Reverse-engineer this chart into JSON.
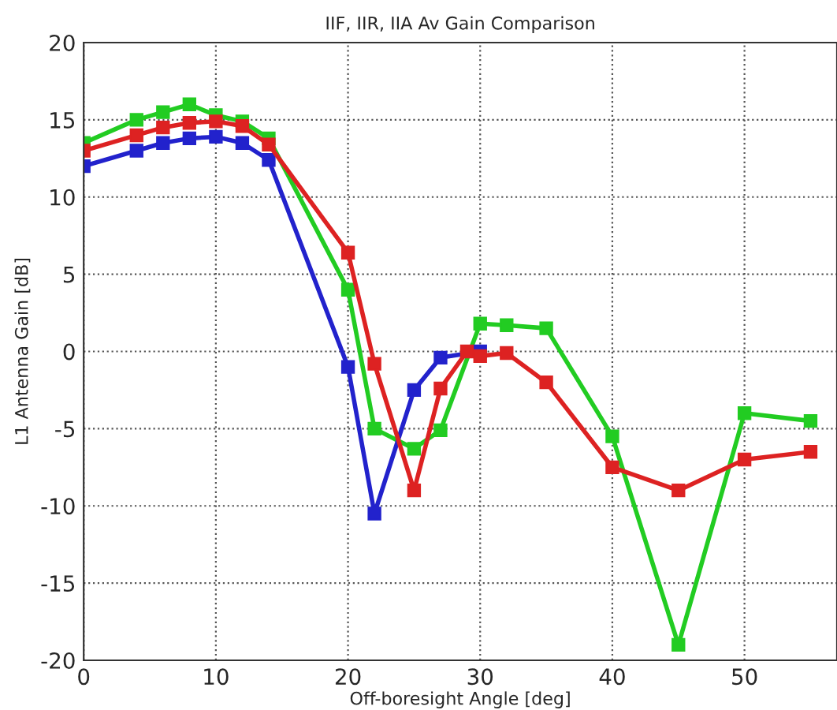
{
  "chart_data": {
    "type": "line",
    "title": "IIF, IIR, IIA Av Gain Comparison",
    "xlabel": "Off-boresight Angle [deg]",
    "ylabel": "L1 Antenna Gain [dB]",
    "xlim": [
      0,
      57
    ],
    "xticks": [
      0,
      10,
      20,
      30,
      40,
      50
    ],
    "ylim": [
      -20,
      20
    ],
    "yticks": [
      -20,
      -15,
      -10,
      -5,
      0,
      5,
      10,
      15,
      20
    ],
    "grid": true,
    "marker": "square",
    "line_style": "solid",
    "series": [
      {
        "color": "#22cc22",
        "x": [
          0,
          4,
          6,
          8,
          10,
          12,
          14,
          20,
          22,
          25,
          27,
          30,
          32,
          35,
          40,
          45,
          50,
          55
        ],
        "values": [
          13.5,
          15,
          15.5,
          16,
          15.3,
          14.9,
          13.8,
          4,
          -5,
          -6.3,
          -5.1,
          1.8,
          1.7,
          1.5,
          -5.5,
          -19,
          -4,
          -4.5
        ]
      },
      {
        "color": "#2222cc",
        "x": [
          0,
          4,
          6,
          8,
          10,
          12,
          14,
          20,
          22,
          25,
          27,
          30
        ],
        "values": [
          12,
          13,
          13.5,
          13.8,
          13.9,
          13.5,
          12.4,
          -1,
          -10.5,
          -2.5,
          -0.4,
          0
        ]
      },
      {
        "color": "#dd2222",
        "x": [
          0,
          4,
          6,
          8,
          10,
          12,
          14,
          20,
          22,
          25,
          27,
          29,
          30,
          32,
          35,
          40,
          45,
          50,
          55
        ],
        "values": [
          13,
          14,
          14.5,
          14.8,
          14.9,
          14.6,
          13.4,
          6.4,
          -0.8,
          -9,
          -2.4,
          0,
          -0.3,
          -0.1,
          -2,
          -7.5,
          -9,
          -7,
          -6.5
        ]
      }
    ]
  }
}
